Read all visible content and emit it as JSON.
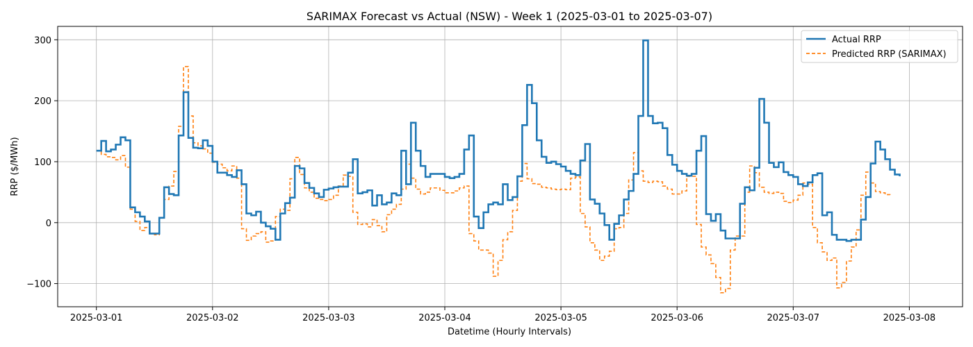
{
  "chart_data": {
    "type": "line",
    "title": "SARIMAX Forecast vs Actual (NSW) - Week 1 (2025-03-01 to 2025-03-07)",
    "xlabel": "Datetime (Hourly Intervals)",
    "ylabel": "RRP ($/MWh)",
    "x_ticks": [
      "2025-03-01",
      "2025-03-02",
      "2025-03-03",
      "2025-03-04",
      "2025-03-05",
      "2025-03-06",
      "2025-03-07",
      "2025-03-08"
    ],
    "y_ticks": [
      "−100",
      "0",
      "100",
      "200",
      "300"
    ],
    "y_tick_values": [
      -100,
      0,
      100,
      200,
      300
    ],
    "xlim": [
      "2025-02-28 16:00",
      "2025-03-08 11:00"
    ],
    "ylim": [
      -138,
      322
    ],
    "grid": true,
    "legend_position": "top-right",
    "interval_hours": 1,
    "start": "2025-03-01 00:00",
    "series": [
      {
        "name": "Actual RRP",
        "color": "#1f77b4",
        "style": "solid",
        "values": [
          118,
          134,
          117,
          120,
          128,
          140,
          135,
          25,
          17,
          10,
          2,
          -18,
          -18,
          8,
          58,
          47,
          45,
          143,
          214,
          139,
          123,
          122,
          135,
          126,
          100,
          82,
          82,
          78,
          75,
          86,
          63,
          15,
          12,
          18,
          0,
          -6,
          -10,
          -28,
          15,
          32,
          41,
          93,
          89,
          65,
          57,
          48,
          42,
          54,
          56,
          58,
          59,
          59,
          82,
          104,
          48,
          50,
          53,
          28,
          45,
          30,
          33,
          48,
          45,
          118,
          63,
          164,
          118,
          93,
          75,
          80,
          80,
          80,
          75,
          73,
          75,
          80,
          120,
          143,
          10,
          -9,
          17,
          30,
          33,
          30,
          63,
          37,
          42,
          76,
          160,
          226,
          196,
          135,
          108,
          98,
          100,
          96,
          92,
          85,
          80,
          78,
          102,
          129,
          38,
          31,
          15,
          -4,
          -28,
          -2,
          12,
          38,
          52,
          80,
          175,
          299,
          175,
          163,
          164,
          155,
          111,
          95,
          85,
          80,
          77,
          80,
          118,
          142,
          14,
          3,
          14,
          -13,
          -26,
          -26,
          -26,
          31,
          58,
          53,
          90,
          203,
          164,
          98,
          91,
          99,
          83,
          78,
          75,
          63,
          60,
          66,
          78,
          81,
          12,
          17,
          -20,
          -28,
          -28,
          -30,
          -28,
          -28,
          5,
          42,
          97,
          133,
          120,
          104,
          87,
          79,
          76
        ]
      },
      {
        "name": "Predicted RRP (SARIMAX)",
        "color": "#ff7f0e",
        "style": "dashed",
        "values": [
          118,
          112,
          108,
          107,
          103,
          110,
          91,
          22,
          2,
          -13,
          -8,
          -18,
          -20,
          8,
          38,
          60,
          84,
          158,
          256,
          175,
          131,
          126,
          121,
          114,
          99,
          96,
          90,
          85,
          93,
          73,
          -10,
          -29,
          -22,
          -18,
          -15,
          -32,
          -30,
          10,
          22,
          20,
          72,
          107,
          79,
          57,
          50,
          40,
          38,
          36,
          38,
          45,
          60,
          78,
          76,
          17,
          -3,
          -2,
          -7,
          5,
          -5,
          -15,
          13,
          22,
          30,
          55,
          96,
          73,
          55,
          47,
          50,
          57,
          57,
          53,
          49,
          49,
          52,
          57,
          60,
          -18,
          -30,
          -45,
          -45,
          -50,
          -88,
          -62,
          -28,
          -15,
          20,
          68,
          97,
          72,
          64,
          63,
          58,
          57,
          55,
          54,
          55,
          54,
          73,
          75,
          15,
          -7,
          -33,
          -45,
          -62,
          -55,
          -47,
          -10,
          -8,
          15,
          70,
          115,
          85,
          68,
          66,
          68,
          67,
          60,
          55,
          47,
          47,
          52,
          76,
          76,
          -3,
          -40,
          -53,
          -67,
          -90,
          -115,
          -108,
          -45,
          -22,
          -22,
          50,
          93,
          82,
          58,
          50,
          48,
          50,
          48,
          35,
          33,
          37,
          45,
          65,
          63,
          -8,
          -33,
          -48,
          -62,
          -58,
          -107,
          -98,
          -63,
          -40,
          -12,
          45,
          83,
          65,
          51,
          49,
          46,
          44
        ]
      }
    ]
  }
}
